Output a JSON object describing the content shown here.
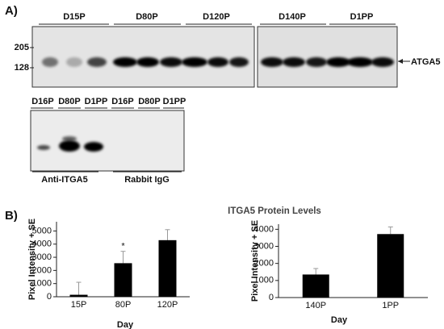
{
  "panel_a": {
    "label": "A)",
    "blot_top": {
      "lanes": [
        "D15P",
        "D80P",
        "D120P",
        "D140P",
        "D1PP"
      ],
      "markers": [
        "205",
        "128"
      ],
      "band_label": "ATGA5"
    },
    "blot_bottom": {
      "lanes": [
        "D16P",
        "D80P",
        "D1PP",
        "D16P",
        "D80P",
        "D1PP"
      ],
      "groups": [
        "Anti-ITGA5",
        "Rabbit IgG"
      ]
    }
  },
  "panel_b": {
    "label": "B)",
    "title": "ITGA5 Protein Levels"
  },
  "chart_data": [
    {
      "type": "bar",
      "categories": [
        "15P",
        "80P",
        "120P"
      ],
      "values": [
        150,
        2550,
        4300
      ],
      "errors": [
        950,
        900,
        800
      ],
      "color": "#000000",
      "ylim": [
        0,
        5700
      ],
      "yticks": [
        0,
        1000,
        2000,
        3000,
        4000,
        5000
      ],
      "ylabel": "Pixel Intensity + SE",
      "xlabel": "Day",
      "annotation": "*"
    },
    {
      "type": "bar",
      "categories": [
        "140P",
        "1PP"
      ],
      "values": [
        1350,
        3720
      ],
      "errors": [
        350,
        420
      ],
      "color": "#000000",
      "ylim": [
        0,
        4300
      ],
      "yticks": [
        0,
        1000,
        2000,
        3000,
        4000
      ],
      "ylabel": "Pixel Intensity + SE",
      "xlabel": "Day"
    }
  ]
}
